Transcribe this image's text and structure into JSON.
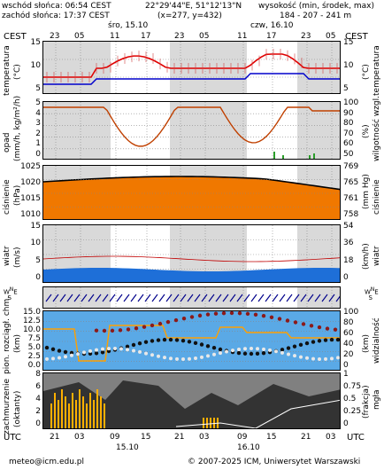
{
  "header": {
    "sunrise": "wschód słońca: 06:54 CEST",
    "sunset": "zachód słońca: 17:37 CEST",
    "coords": "22°29'44\"E, 51°12'13\"N",
    "grid": "(x=277, y=432)",
    "elev_title": "wysokość (min, środek, max)",
    "elev_values": "184 - 207 - 241 m"
  },
  "top_axis": {
    "tz_left": "CEST",
    "tz_right": "CEST",
    "day1": "śro, 15.10",
    "day2": "czw, 16.10",
    "hours": [
      "23",
      "05",
      "11",
      "17",
      "23",
      "05",
      "11",
      "17",
      "23",
      "05"
    ]
  },
  "bottom_axis": {
    "tz_left": "UTC",
    "tz_right": "UTC",
    "hours": [
      "21",
      "03",
      "09",
      "15",
      "21",
      "03",
      "09",
      "15",
      "21",
      "03"
    ],
    "day1": "15.10",
    "day2": "16.10"
  },
  "panels": {
    "temp": {
      "left_label": "temperatura",
      "left_unit": "(°C)",
      "right_label": "temperatura",
      "right_unit": "(°C)",
      "left_ticks": [
        "15",
        "10",
        "5"
      ],
      "right_ticks": [
        "15",
        "10",
        "5"
      ]
    },
    "precip": {
      "left_label": "opad",
      "left_unit": "(mm/h, kg/m²/h)",
      "right_label": "wilgotność wzgl.",
      "right_unit": "(%)",
      "left_ticks": [
        "5",
        "4",
        "3",
        "2",
        "1",
        "0"
      ],
      "right_ticks": [
        "100",
        "90",
        "80",
        "70",
        "60",
        "50"
      ]
    },
    "pressure": {
      "left_label": "ciśnienie",
      "left_unit": "(hPa)",
      "right_label": "ciśnienie",
      "right_unit": "(mm Hg)",
      "left_ticks": [
        "1025",
        "1020",
        "1015",
        "1010"
      ],
      "right_ticks": [
        "769",
        "765",
        "761",
        "758"
      ]
    },
    "wind": {
      "left_label": "wiatr",
      "left_unit": "(m/s)",
      "right_label": "wiatr",
      "right_unit": "(km/h)",
      "left_ticks": [
        "15",
        "10",
        "5",
        "0"
      ],
      "right_ticks": [
        "54",
        "36",
        "18",
        "0"
      ]
    },
    "winddir": {
      "left_label": "W N E S",
      "right_label": "W N E S"
    },
    "vis": {
      "left_label": "pion. rozciągł. chm.",
      "left_unit": "(km)",
      "right_label": "widzialność",
      "right_unit": "(km)",
      "left_ticks": [
        "15.0",
        "12.5",
        "10.0",
        "7.5",
        "5.0",
        "2.5",
        "0.0"
      ],
      "right_ticks": [
        "100",
        "80",
        "60",
        "40",
        "20",
        "0"
      ]
    },
    "cloud": {
      "left_label": "zachmurzenie",
      "left_unit": "(oktanty)",
      "right_label": "(frakcja)",
      "right_unit": "mgła",
      "left_ticks": [
        "8",
        "6",
        "4",
        "2",
        "0"
      ],
      "right_ticks": [
        "1",
        "0.75",
        "0.5",
        "0.25",
        "0"
      ]
    }
  },
  "footer": {
    "email": "meteo@icm.edu.pl",
    "copyright": "© 2007-2025 ICM, Uniwersytet Warszawski"
  },
  "colors": {
    "night": "#d4d4d4",
    "temp": "#e00000",
    "dew": "#0000cc",
    "humidity": "#c04000",
    "pressure_fill": "#ff9900",
    "wind_fill": "#1e90ff",
    "vis_bg": "#4fa3e8",
    "vis_line": "#ff9900",
    "cloud_dark": "#444444",
    "precip_bar": "#ffbb00"
  }
}
